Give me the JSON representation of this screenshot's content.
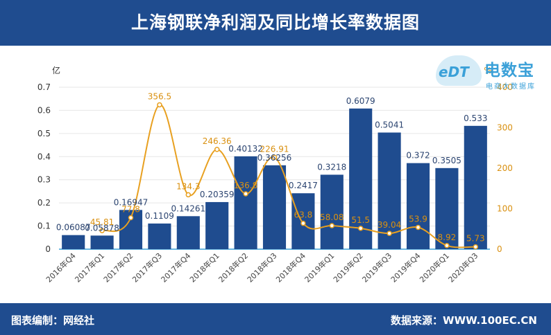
{
  "header": {
    "title": "上海钢联净利润及同比增长率数据图"
  },
  "footer": {
    "left": "图表编制：网经社",
    "right": "数据来源：WWW.100EC.CN"
  },
  "logo": {
    "mark": "eDT",
    "brand": "电数宝",
    "sub": "电商大数据库"
  },
  "colors": {
    "bar": "#1f4c8f",
    "line": "#e8a020",
    "label_bar": "#2b4470",
    "label_line": "#d99010",
    "banner": "#1f4c8f"
  },
  "chart_data": {
    "type": "bar",
    "categories": [
      "2016年Q4",
      "2017年Q1",
      "2017年Q2",
      "2017年Q3",
      "2017年Q4",
      "2018年Q1",
      "2018年Q2",
      "2018年Q3",
      "2018年Q4",
      "2019年Q1",
      "2019年Q2",
      "2019年Q3",
      "2019年Q4",
      "2020年Q1",
      "2020年Q3"
    ],
    "series": [
      {
        "kind": "bar",
        "axis": "left",
        "values": [
          0.06087,
          0.05878,
          0.16947,
          0.1109,
          0.14261,
          0.20359,
          0.40132,
          0.36256,
          0.2417,
          0.3218,
          0.6079,
          0.5041,
          0.372,
          0.3505,
          0.533
        ],
        "labels": [
          "0.06087",
          "0.05878",
          "0.16947",
          "0.1109",
          "0.14261",
          "0.20359",
          "0.40132",
          "0.36256",
          "0.2417",
          "0.3218",
          "0.6079",
          "0.5041",
          "0.372",
          "0.3505",
          "0.533"
        ]
      },
      {
        "kind": "line",
        "axis": "right",
        "values": [
          null,
          45.81,
          77.8,
          356.5,
          134.3,
          246.36,
          136.8,
          226.91,
          63.8,
          58.08,
          51.5,
          39.04,
          53.9,
          8.92,
          5.73
        ],
        "labels": [
          "",
          "45.81",
          "77.8",
          "356.5",
          "134.3",
          "246.36",
          "136.8",
          "226.91",
          "63.8",
          "58.08",
          "51.5",
          "39.04",
          "53.9",
          "8.92",
          "5.73"
        ]
      }
    ],
    "ylabel_left": "亿",
    "ylabel_right": "%",
    "ylim_left": [
      0,
      0.7
    ],
    "ylim_right": [
      0,
      400
    ],
    "yticks_left": [
      "0",
      "0.1",
      "0.2",
      "0.3",
      "0.4",
      "0.5",
      "0.6",
      "0.7"
    ],
    "yticks_right": [
      "0",
      "100",
      "200",
      "300",
      "400"
    ],
    "grid": true
  }
}
